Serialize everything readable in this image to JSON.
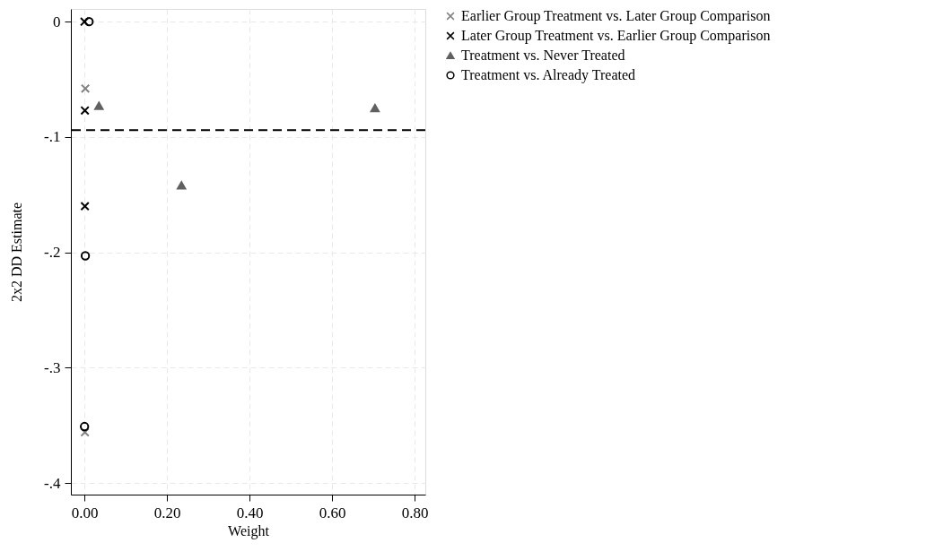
{
  "chart_data": {
    "type": "scatter",
    "xlabel": "Weight",
    "ylabel": "2x2 DD Estimate",
    "xlim": [
      -0.033,
      0.826
    ],
    "ylim": [
      -0.41,
      0.011
    ],
    "xticks": [
      {
        "value": 0,
        "label": "0.00"
      },
      {
        "value": 0.2,
        "label": "0.20"
      },
      {
        "value": 0.4,
        "label": "0.40"
      },
      {
        "value": 0.6,
        "label": "0.60"
      },
      {
        "value": 0.8,
        "label": "0.80"
      }
    ],
    "yticks": [
      {
        "value": 0,
        "label": "0"
      },
      {
        "value": -0.1,
        "label": "-.1"
      },
      {
        "value": -0.2,
        "label": "-.2"
      },
      {
        "value": -0.3,
        "label": "-.3"
      },
      {
        "value": -0.4,
        "label": "-.4"
      }
    ],
    "grid": true,
    "legend": "right",
    "ref_lines": [
      {
        "axis": "y",
        "value": -0.094,
        "color": "#000000",
        "line_style": "dashed"
      }
    ],
    "series": [
      {
        "name": "Earlier Group Treatment vs. Later Group Comparison",
        "color": "#808080",
        "marker": "cross",
        "x": [
          0.002,
          0.001
        ],
        "values": [
          -0.058,
          -0.356
        ]
      },
      {
        "name": "Later Group Treatment vs. Earlier Group Comparison",
        "color": "#000000",
        "marker": "cross",
        "x": [
          0.0,
          0.001,
          0.001
        ],
        "values": [
          0.0,
          -0.077,
          -0.16
        ]
      },
      {
        "name": "Treatment vs. Never Treated",
        "color": "#606060",
        "marker": "triangle",
        "x": [
          0.035,
          0.235,
          0.704
        ],
        "values": [
          -0.073,
          -0.142,
          -0.075
        ]
      },
      {
        "name": "Treatment vs. Already Treated",
        "color": "#000000",
        "marker": "circle",
        "x": [
          0.011,
          0.002,
          0.0
        ],
        "values": [
          0.0,
          -0.203,
          -0.351
        ]
      }
    ]
  }
}
